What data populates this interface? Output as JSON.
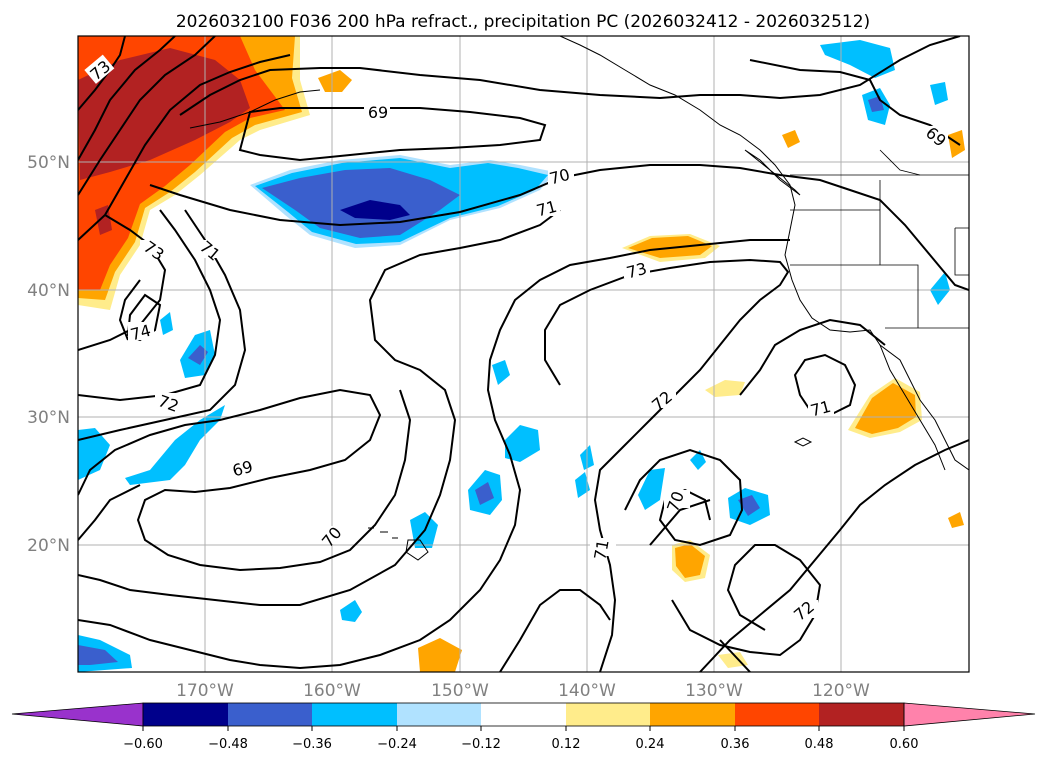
{
  "title": "2026032100 F036 200 hPa refract., precipitation PC (2026032412 - 2026032512)",
  "lat_labels": [
    "50°N",
    "40°N",
    "30°N",
    "20°N"
  ],
  "lon_labels": [
    "170°W",
    "160°W",
    "150°W",
    "140°W",
    "130°W",
    "120°W"
  ],
  "colorbar": {
    "tick_labels": [
      "−0.60",
      "−0.48",
      "−0.36",
      "−0.24",
      "−0.12",
      "0.12",
      "0.24",
      "0.36",
      "0.48",
      "0.60"
    ],
    "colors": {
      "below": "#9932cc",
      "n060": "#00008b",
      "n048": "#3a5fcd",
      "n036": "#00bfff",
      "n024": "#b0e2ff",
      "zero": "#ffffff",
      "p012": "#ffec8b",
      "p024": "#ffa500",
      "p036": "#ff4500",
      "p048": "#b22222",
      "above": "#ff82ab"
    }
  },
  "contour_labels": [
    "73",
    "69",
    "70",
    "71",
    "69",
    "73",
    "71",
    "74",
    "72",
    "69",
    "70",
    "72",
    "71",
    "70",
    "71",
    "72",
    "73"
  ],
  "colors": {
    "grid": "#b0b0b0",
    "contour": "#000000",
    "coast": "#000000"
  }
}
